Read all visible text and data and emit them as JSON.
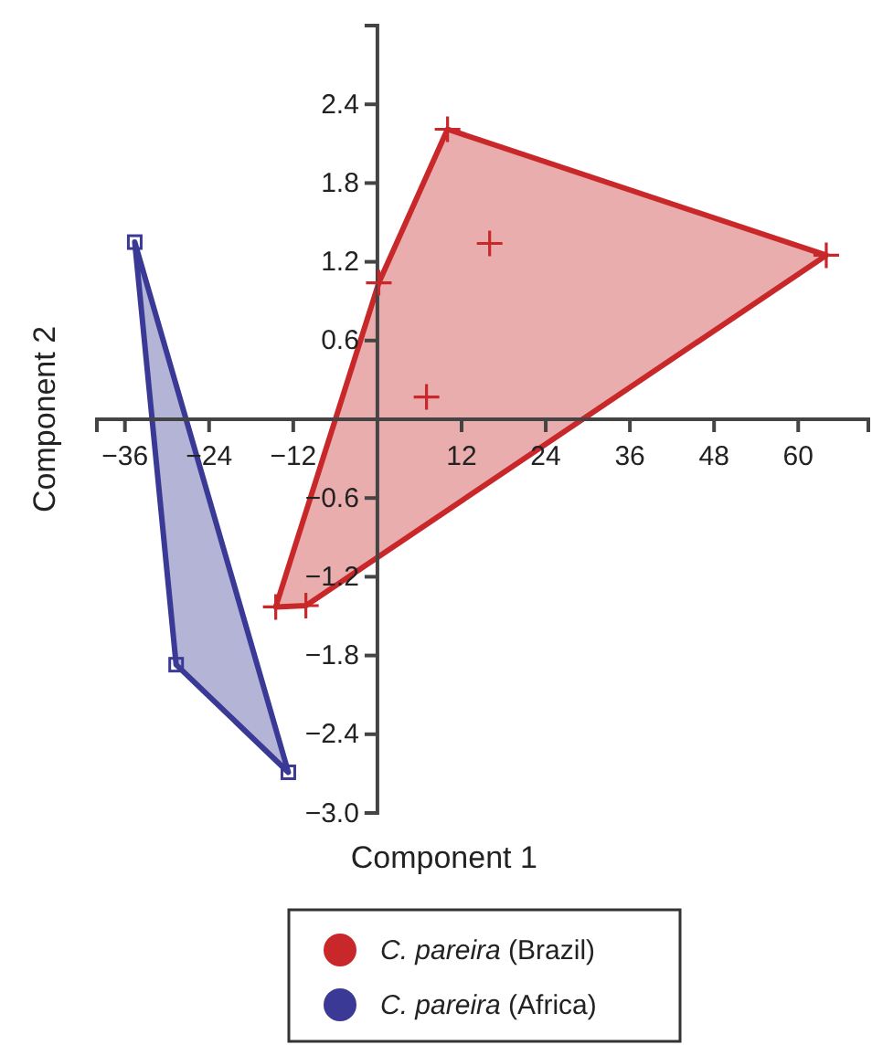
{
  "chart_data": {
    "type": "scatter",
    "xlabel": "Component 1",
    "ylabel": "Component 2",
    "xlim": [
      -40,
      70
    ],
    "ylim": [
      -3,
      3
    ],
    "xticks": [
      {
        "value": -36,
        "label": "−36"
      },
      {
        "value": -24,
        "label": "−24"
      },
      {
        "value": -12,
        "label": "−12"
      },
      12,
      24,
      36,
      48,
      60
    ],
    "yticks": [
      {
        "value": -3,
        "label": "−3.0"
      },
      {
        "value": -2.4,
        "label": "−2.4"
      },
      {
        "value": -1.8,
        "label": "−1.8"
      },
      {
        "value": -1.2,
        "label": "−1.2"
      },
      {
        "value": -0.6,
        "label": "−0.6"
      },
      {
        "value": 0.6,
        "label": "0.6"
      },
      {
        "value": 1.2,
        "label": "1.2"
      },
      {
        "value": 1.8,
        "label": "1.8"
      },
      {
        "value": 2.4,
        "label": "2.4"
      }
    ],
    "legend": "bottom",
    "grid": false,
    "series": [
      {
        "type": "area",
        "color": "#c8282a",
        "x": [
          10,
          64,
          -10.2,
          -14.5,
          0.2
        ],
        "values": [
          2.21,
          1.25,
          -1.42,
          -1.43,
          1.04
        ]
      },
      {
        "type": "area",
        "color": "#3a3a96",
        "x": [
          -34.6,
          -12.7,
          -28.7
        ],
        "values": [
          1.35,
          -2.69,
          -1.87
        ]
      },
      {
        "name": "C. pareira (Brazil)",
        "color": "#c8282a",
        "marker": "cross",
        "x": [
          10,
          64,
          16,
          0.2,
          7,
          -14.5,
          -10.2
        ],
        "values": [
          2.21,
          1.25,
          1.34,
          1.04,
          0.17,
          -1.43,
          -1.42
        ]
      },
      {
        "name": "C. pareira (Africa)",
        "color": "#3a3a96",
        "marker": "square",
        "x": [
          -34.6,
          -28.7,
          -12.7
        ],
        "values": [
          1.35,
          -1.87,
          -2.69
        ]
      }
    ]
  }
}
